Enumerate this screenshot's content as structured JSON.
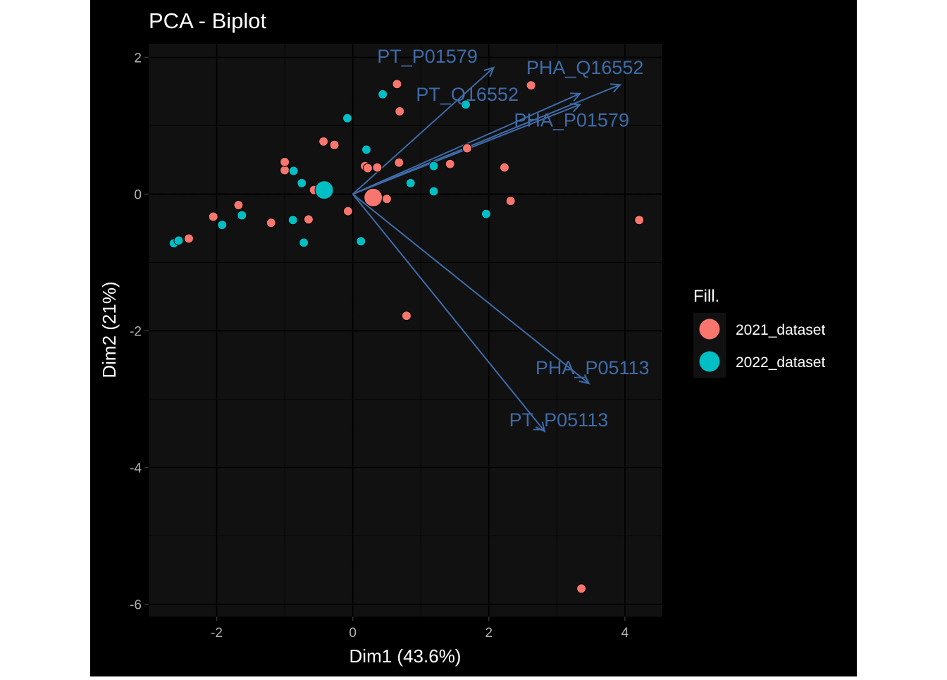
{
  "chart_data": {
    "type": "scatter",
    "title": "PCA - Biplot",
    "xlabel": "Dim1 (43.6%)",
    "ylabel": "Dim2 (21%)",
    "xlim": [
      -3.0,
      4.55
    ],
    "ylim": [
      -6.18,
      2.2
    ],
    "xticks": [
      -2,
      0,
      2,
      4
    ],
    "yticks": [
      2,
      0,
      -2,
      -4,
      -6
    ],
    "xtick_labels": [
      "-2",
      "0",
      "2",
      "4"
    ],
    "ytick_labels": [
      "2",
      "0",
      "-2",
      "-4",
      "-6"
    ],
    "grid": true,
    "legend": {
      "title": "Fill.",
      "position": "right",
      "entries": [
        {
          "label": "2021_dataset",
          "color": "#F8766D"
        },
        {
          "label": "2022_dataset",
          "color": "#00BFC4"
        }
      ]
    },
    "series": [
      {
        "name": "2021_dataset",
        "color": "#F8766D",
        "points": [
          [
            -2.41,
            -0.65
          ],
          [
            -2.05,
            -0.33
          ],
          [
            -1.68,
            -0.16
          ],
          [
            -1.2,
            -0.42
          ],
          [
            -1.0,
            0.35
          ],
          [
            -1.0,
            0.47
          ],
          [
            -0.65,
            -0.37
          ],
          [
            -0.57,
            0.06
          ],
          [
            -0.43,
            0.77
          ],
          [
            -0.27,
            0.72
          ],
          [
            -0.07,
            -0.25
          ],
          [
            0.18,
            0.41
          ],
          [
            0.22,
            0.38
          ],
          [
            0.36,
            0.39
          ],
          [
            0.5,
            -0.07
          ],
          [
            0.65,
            1.61
          ],
          [
            0.69,
            1.21
          ],
          [
            0.68,
            0.46
          ],
          [
            0.79,
            -1.78
          ],
          [
            1.43,
            0.44
          ],
          [
            1.68,
            0.67
          ],
          [
            2.23,
            0.39
          ],
          [
            2.32,
            -0.1
          ],
          [
            2.62,
            1.59
          ],
          [
            3.36,
            -5.77
          ],
          [
            4.21,
            -0.38
          ]
        ],
        "centroid": [
          0.3,
          -0.05
        ]
      },
      {
        "name": "2022_dataset",
        "color": "#00BFC4",
        "points": [
          [
            -2.63,
            -0.72
          ],
          [
            -2.56,
            -0.68
          ],
          [
            -1.92,
            -0.45
          ],
          [
            -1.63,
            -0.31
          ],
          [
            -0.87,
            0.34
          ],
          [
            -0.88,
            -0.38
          ],
          [
            -0.75,
            0.16
          ],
          [
            -0.72,
            -0.71
          ],
          [
            -0.08,
            1.11
          ],
          [
            0.12,
            -0.69
          ],
          [
            0.2,
            0.65
          ],
          [
            0.44,
            1.46
          ],
          [
            0.85,
            0.16
          ],
          [
            1.19,
            0.41
          ],
          [
            1.19,
            0.04
          ],
          [
            1.66,
            1.31
          ],
          [
            1.96,
            -0.29
          ]
        ],
        "centroid": [
          -0.42,
          0.06
        ]
      }
    ],
    "variables": [
      {
        "label": "PT_P01579",
        "x": 2.07,
        "y": 1.85
      },
      {
        "label": "PHA_Q16552",
        "x": 3.93,
        "y": 1.6
      },
      {
        "label": "PT_Q16552",
        "x": 3.34,
        "y": 1.47
      },
      {
        "label": "PHA_P01579",
        "x": 3.34,
        "y": 1.31
      },
      {
        "label": "PHA_P05113",
        "x": 3.47,
        "y": -2.77
      },
      {
        "label": "PT_P05113",
        "x": 2.82,
        "y": -3.47
      }
    ]
  },
  "colors": {
    "page_background": "#000000",
    "panel_background": "#111111",
    "arrow": "#3E6BA8",
    "axis_text": "#B3B3B3",
    "text": "#FFFFFF"
  }
}
